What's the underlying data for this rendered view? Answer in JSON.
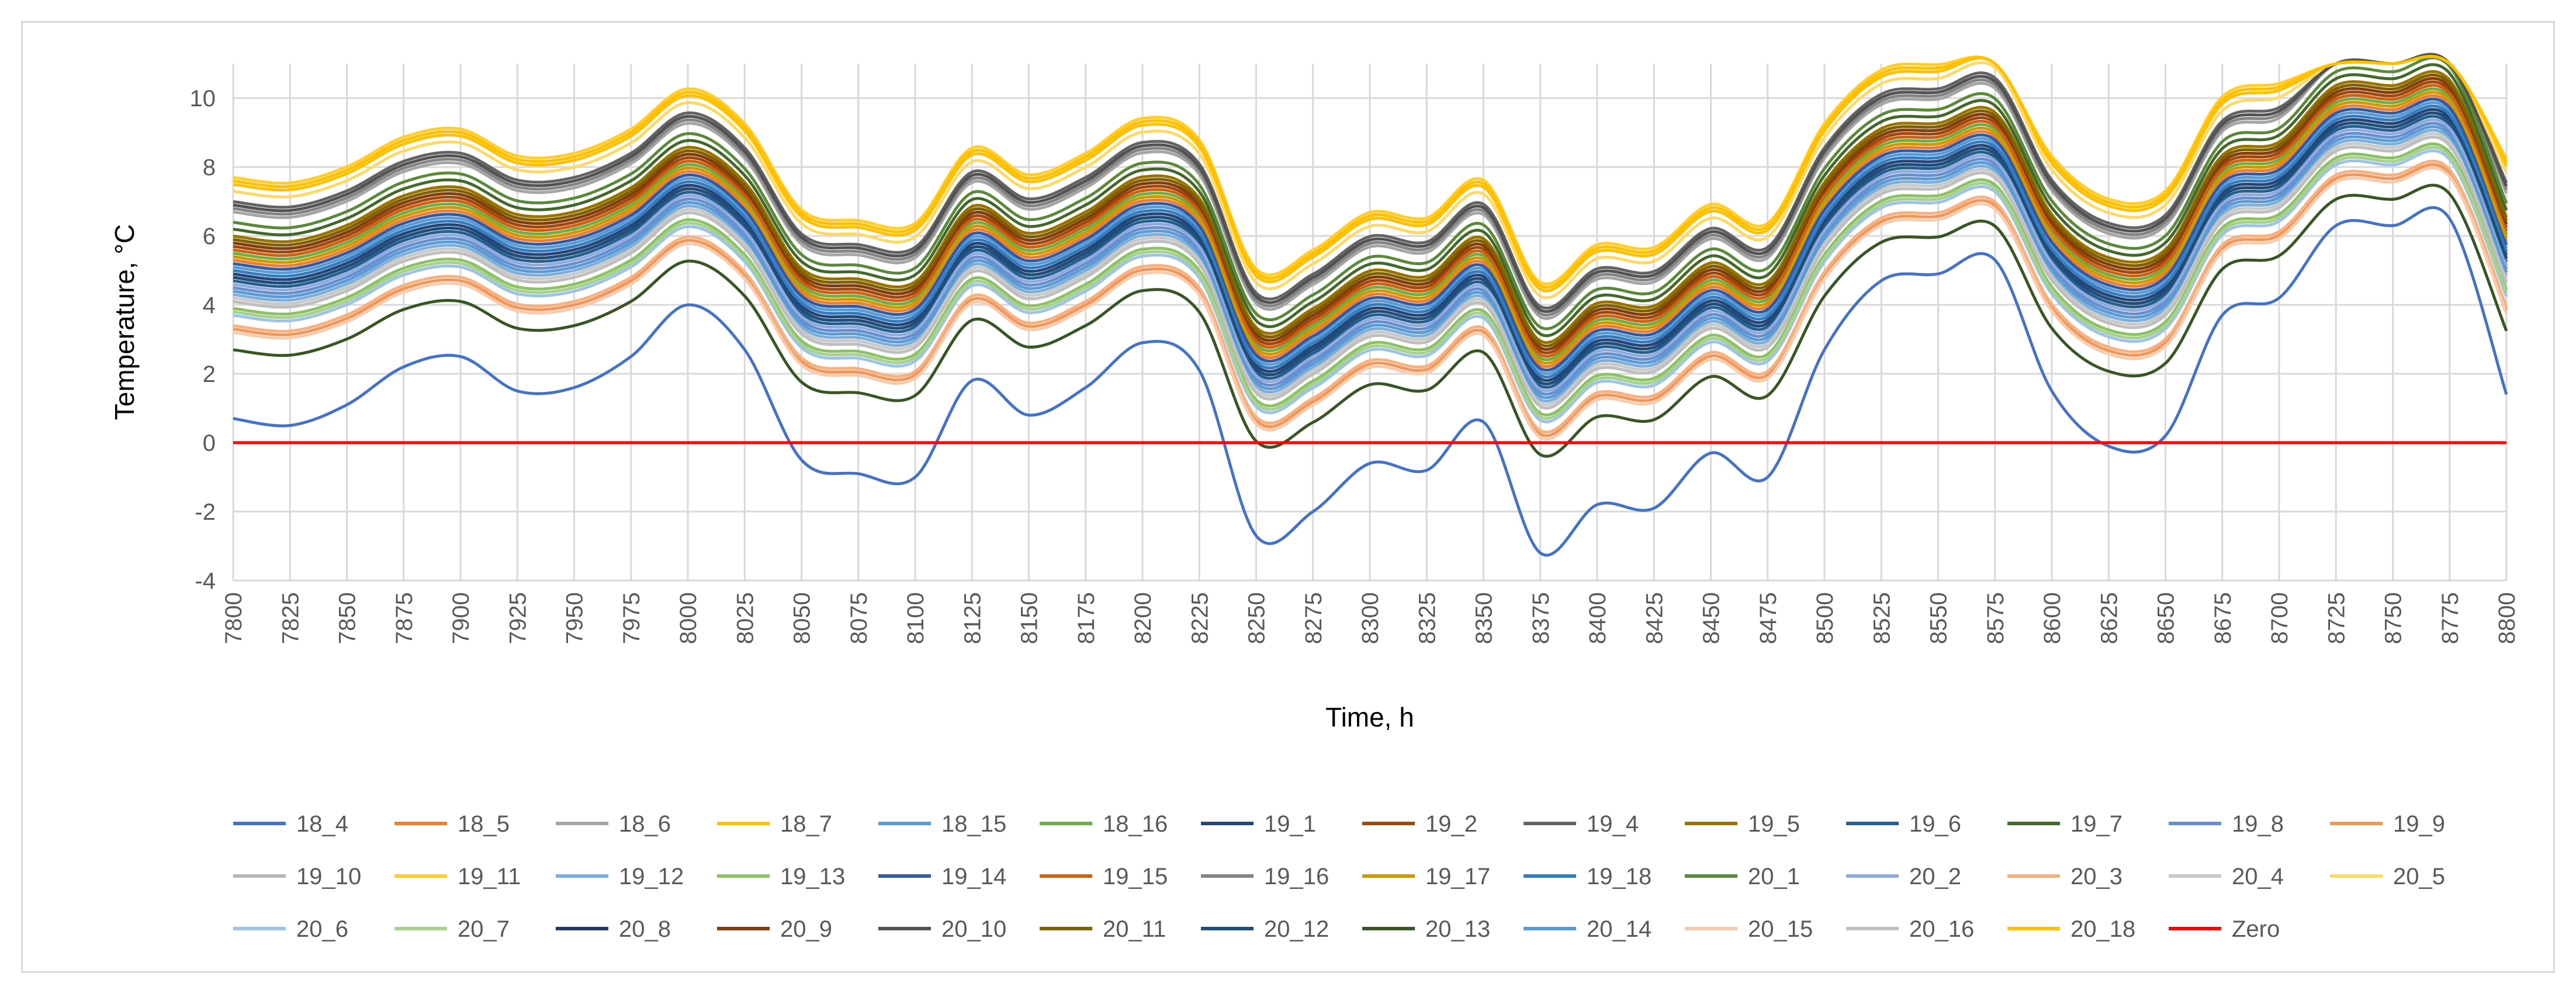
{
  "chart_data": {
    "type": "line",
    "title": "",
    "xlabel": "Time, h",
    "ylabel": "Temperature, °C",
    "xlim": [
      7800,
      8800
    ],
    "ylim": [
      -4,
      11
    ],
    "x_ticks": [
      "7800",
      "7825",
      "7850",
      "7875",
      "7900",
      "7925",
      "7950",
      "7975",
      "8000",
      "8025",
      "8050",
      "8075",
      "8100",
      "8125",
      "8150",
      "8175",
      "8200",
      "8225",
      "8250",
      "8275",
      "8300",
      "8325",
      "8350",
      "8375",
      "8400",
      "8425",
      "8450",
      "8475",
      "8500",
      "8525",
      "8550",
      "8575",
      "8600",
      "8625",
      "8650",
      "8675",
      "8700",
      "8725",
      "8750",
      "8775",
      "8800"
    ],
    "y_ticks": [
      "-4",
      "-2",
      "0",
      "2",
      "4",
      "6",
      "8",
      "10"
    ],
    "grid": "vertical and horizontal",
    "legend_position": "bottom",
    "x": [
      7800,
      7825,
      7850,
      7875,
      7900,
      7925,
      7950,
      7975,
      8000,
      8025,
      8050,
      8075,
      8100,
      8125,
      8150,
      8175,
      8200,
      8225,
      8250,
      8275,
      8300,
      8325,
      8350,
      8375,
      8400,
      8425,
      8450,
      8475,
      8500,
      8525,
      8550,
      8575,
      8600,
      8625,
      8650,
      8675,
      8700,
      8725,
      8750,
      8775,
      8800
    ],
    "reference_shape": [
      0.7,
      0.5,
      1.1,
      2.2,
      2.5,
      1.5,
      1.6,
      2.5,
      4.0,
      2.7,
      -0.5,
      -0.9,
      -1.0,
      1.8,
      0.8,
      1.6,
      2.9,
      2.1,
      -2.7,
      -2.0,
      -0.6,
      -0.8,
      0.6,
      -3.2,
      -1.8,
      -1.9,
      -0.3,
      -1.0,
      2.7,
      4.7,
      4.9,
      5.3,
      1.5,
      -0.1,
      0.2,
      3.7,
      4.2,
      6.3,
      6.3,
      6.5,
      1.4
    ],
    "series": [
      {
        "name": "18_4",
        "color": "#4472c4",
        "offset": 0.0,
        "mode": "base"
      },
      {
        "name": "18_5",
        "color": "#ed7d31",
        "offset": 4.2
      },
      {
        "name": "18_6",
        "color": "#a5a5a5",
        "offset": 5.6
      },
      {
        "name": "18_7",
        "color": "#ffc000",
        "offset": 6.4
      },
      {
        "name": "18_15",
        "color": "#5b9bd5",
        "offset": 4.0
      },
      {
        "name": "18_16",
        "color": "#70ad47",
        "offset": 4.4
      },
      {
        "name": "19_1",
        "color": "#264478",
        "offset": 3.8
      },
      {
        "name": "19_2",
        "color": "#9e480e",
        "offset": 4.6
      },
      {
        "name": "19_4",
        "color": "#636363",
        "offset": 5.9
      },
      {
        "name": "19_5",
        "color": "#997300",
        "offset": 4.9
      },
      {
        "name": "19_6",
        "color": "#255e91",
        "offset": 3.6
      },
      {
        "name": "19_7",
        "color": "#43682b",
        "offset": 5.1
      },
      {
        "name": "19_8",
        "color": "#698ed0",
        "offset": 3.4
      },
      {
        "name": "19_9",
        "color": "#f1975a",
        "offset": 2.2
      },
      {
        "name": "19_10",
        "color": "#b7b7b7",
        "offset": 3.0
      },
      {
        "name": "19_11",
        "color": "#ffcd33",
        "offset": 6.6
      },
      {
        "name": "19_12",
        "color": "#7cafdd",
        "offset": 3.2
      },
      {
        "name": "19_13",
        "color": "#8cc168",
        "offset": 2.8
      },
      {
        "name": "19_14",
        "color": "#335aa1",
        "offset": 4.1
      },
      {
        "name": "19_15",
        "color": "#d26012",
        "offset": 4.5
      },
      {
        "name": "19_16",
        "color": "#848484",
        "offset": 5.7
      },
      {
        "name": "19_17",
        "color": "#cc9a00",
        "offset": 4.3
      },
      {
        "name": "19_18",
        "color": "#327dc2",
        "offset": 3.9
      },
      {
        "name": "20_1",
        "color": "#5a8a39",
        "offset": 5.3
      },
      {
        "name": "20_2",
        "color": "#8faadc",
        "offset": 3.5
      },
      {
        "name": "20_3",
        "color": "#f4b183",
        "offset": 2.3
      },
      {
        "name": "20_4",
        "color": "#c9c9c9",
        "offset": 3.1
      },
      {
        "name": "20_5",
        "color": "#ffd966",
        "offset": 6.2
      },
      {
        "name": "20_6",
        "color": "#9dc3e6",
        "offset": 2.6
      },
      {
        "name": "20_7",
        "color": "#a9d18e",
        "offset": 2.7
      },
      {
        "name": "20_8",
        "color": "#1f3864",
        "offset": 3.7
      },
      {
        "name": "20_9",
        "color": "#843c0c",
        "offset": 4.7
      },
      {
        "name": "20_10",
        "color": "#525252",
        "offset": 5.8
      },
      {
        "name": "20_11",
        "color": "#7f6000",
        "offset": 4.8
      },
      {
        "name": "20_12",
        "color": "#1f4e79",
        "offset": 3.7
      },
      {
        "name": "20_13",
        "color": "#375623",
        "offset": 1.6
      },
      {
        "name": "20_14",
        "color": "#5b9bd5",
        "offset": 3.3
      },
      {
        "name": "20_15",
        "color": "#f8cbad",
        "offset": 2.1
      },
      {
        "name": "20_16",
        "color": "#bfbfbf",
        "offset": 3.0
      },
      {
        "name": "20_18",
        "color": "#ffc000",
        "offset": 6.5
      },
      {
        "name": "Zero",
        "color": "#ff0000",
        "constant": 0
      }
    ]
  }
}
